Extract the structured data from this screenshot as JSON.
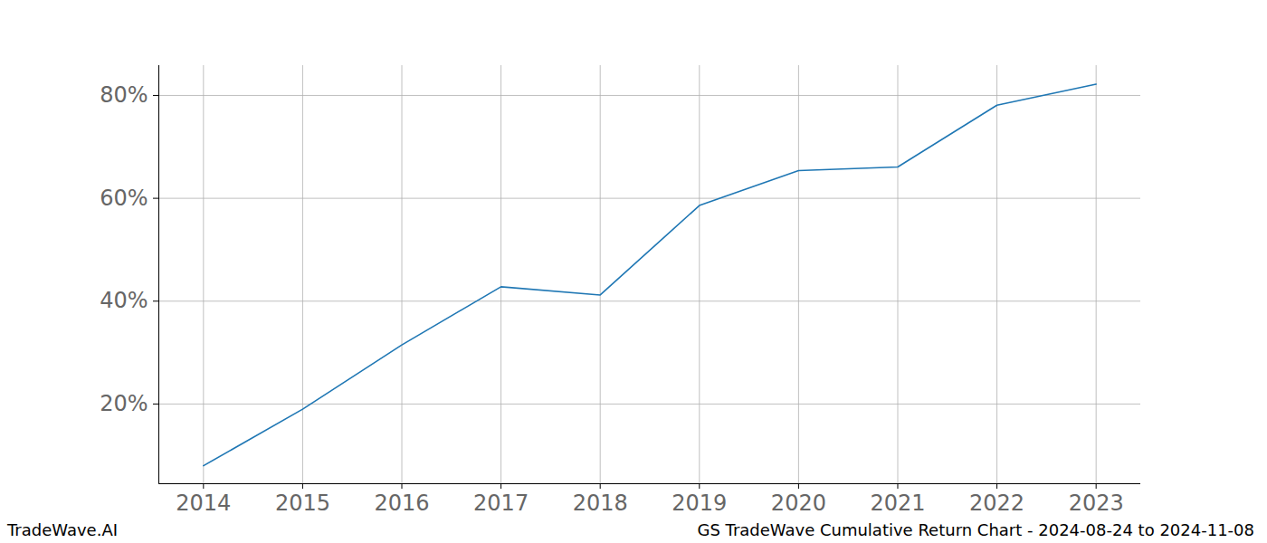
{
  "chart_data": {
    "type": "line",
    "title": "GS TradeWave Cumulative Return Chart - 2024-08-24 to 2024-11-08",
    "source": "TradeWave.AI",
    "x": [
      2014,
      2015,
      2016,
      2017,
      2018,
      2019,
      2020,
      2021,
      2022,
      2023
    ],
    "values": [
      8.0,
      19.0,
      31.5,
      42.8,
      41.2,
      58.6,
      65.4,
      66.1,
      78.1,
      82.2
    ],
    "color": "#1f77b4",
    "xlim": [
      2013.55,
      2023.45
    ],
    "xticks": [
      2014,
      2015,
      2016,
      2017,
      2018,
      2019,
      2020,
      2021,
      2022,
      2023
    ],
    "ylim": [
      4.5,
      85.8
    ],
    "yticks": [
      {
        "value": 20,
        "label": "20%"
      },
      {
        "value": 40,
        "label": "40%"
      },
      {
        "value": 60,
        "label": "60%"
      },
      {
        "value": 80,
        "label": "80%"
      }
    ],
    "grid": true
  }
}
